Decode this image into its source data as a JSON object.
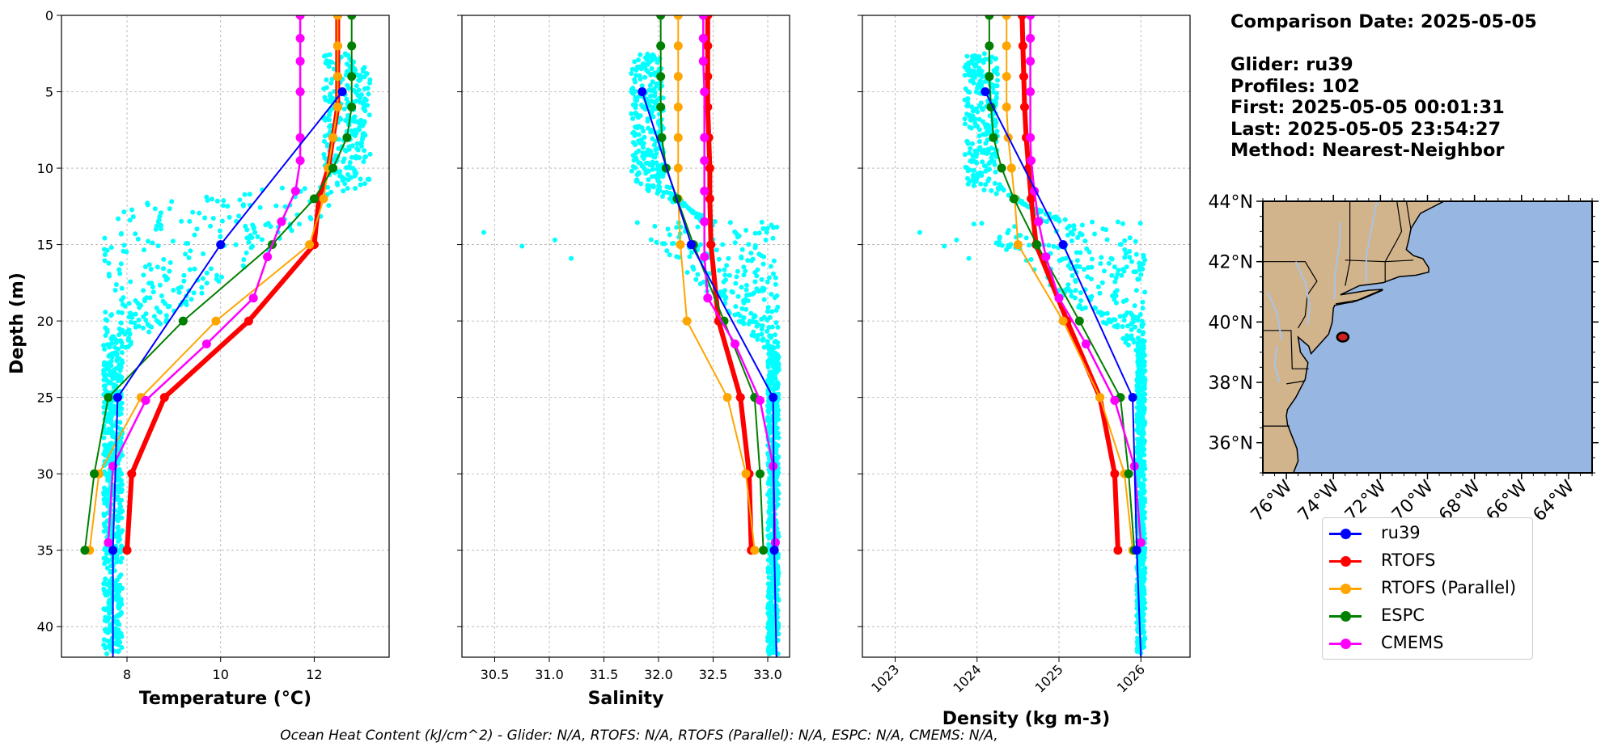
{
  "info": {
    "comparison_date": "Comparison Date: 2025-05-05",
    "glider": "Glider: ru39",
    "profiles": "Profiles: 102",
    "first": "First: 2025-05-05 00:01:31",
    "last": "Last: 2025-05-05 23:54:27",
    "method": "Method: Nearest-Neighbor"
  },
  "footer": "Ocean Heat Content (kJ/cm^2) - Glider: N/A,  RTOFS: N/A,  RTOFS (Parallel): N/A,  ESPC: N/A,  CMEMS: N/A,",
  "colors": {
    "scatter": "#00ffff",
    "ru39": "#0000ff",
    "RTOFS": "#ff0000",
    "RTOFS (Parallel)": "#ffa500",
    "ESPC": "#008000",
    "CMEMS": "#ff00ff",
    "land": "#d2b48c",
    "ocean": "#97b6e1",
    "grid": "#b0b0b0"
  },
  "legend": [
    {
      "name": "ru39",
      "color": "#0000ff"
    },
    {
      "name": "RTOFS",
      "color": "#ff0000"
    },
    {
      "name": "RTOFS (Parallel)",
      "color": "#ffa500"
    },
    {
      "name": "ESPC",
      "color": "#008000"
    },
    {
      "name": "CMEMS",
      "color": "#ff00ff"
    }
  ],
  "map": {
    "lat_ticks": [
      "44°N",
      "42°N",
      "40°N",
      "38°N",
      "36°N"
    ],
    "lat_values": [
      44,
      42,
      40,
      38,
      36
    ],
    "lon_ticks": [
      "76°W",
      "74°W",
      "72°W",
      "70°W",
      "68°W",
      "66°W",
      "64°W"
    ],
    "lon_values": [
      -76,
      -74,
      -72,
      -70,
      -68,
      -66,
      -64
    ],
    "extent": {
      "lon": [
        -77,
        -63
      ],
      "lat": [
        35,
        44
      ]
    },
    "glider_position": {
      "lon": -73.6,
      "lat": 39.5
    }
  },
  "chart_data": [
    {
      "type": "line",
      "xlabel": "Temperature (°C)",
      "ylabel": "Depth (m)",
      "xticks": [
        8,
        10,
        12
      ],
      "yticks": [
        0,
        5,
        10,
        15,
        20,
        25,
        30,
        35,
        40
      ],
      "xlim": [
        6.6,
        13.6
      ],
      "ylim": [
        42,
        0
      ],
      "grid": true,
      "scatter": {
        "name": "glider profiles",
        "depth_range": [
          2.5,
          41.8
        ],
        "surface_range": [
          12.2,
          13.2
        ],
        "deep_range": [
          7.5,
          7.9
        ]
      },
      "series": [
        {
          "name": "ru39",
          "depth": [
            5,
            15,
            25,
            35,
            42
          ],
          "values": [
            12.6,
            10.0,
            7.8,
            7.7,
            7.7
          ]
        },
        {
          "name": "RTOFS",
          "depth": [
            0,
            2,
            4,
            6,
            8,
            10,
            12,
            15,
            20,
            25,
            30,
            35
          ],
          "values": [
            12.5,
            12.5,
            12.5,
            12.5,
            12.4,
            12.3,
            12.1,
            12.0,
            10.6,
            8.8,
            8.1,
            8.0
          ]
        },
        {
          "name": "RTOFS (Parallel)",
          "depth": [
            0,
            2,
            4,
            6,
            8,
            10,
            12,
            15,
            20,
            25,
            30,
            35
          ],
          "values": [
            12.5,
            12.5,
            12.5,
            12.5,
            12.4,
            12.3,
            12.2,
            11.9,
            9.9,
            8.3,
            7.4,
            7.2
          ]
        },
        {
          "name": "ESPC",
          "depth": [
            0,
            2,
            4,
            6,
            8,
            10,
            12,
            15,
            20,
            25,
            30,
            35
          ],
          "values": [
            12.8,
            12.8,
            12.8,
            12.8,
            12.7,
            12.4,
            12.0,
            11.1,
            9.2,
            7.6,
            7.3,
            7.1
          ]
        },
        {
          "name": "CMEMS",
          "depth": [
            0,
            1.5,
            3,
            5,
            8,
            9.5,
            11.5,
            13.5,
            15.8,
            18.5,
            21.5,
            25.2,
            29.5,
            34.5
          ],
          "values": [
            11.7,
            11.7,
            11.7,
            11.7,
            11.7,
            11.7,
            11.6,
            11.3,
            11.0,
            10.7,
            9.7,
            8.4,
            7.7,
            7.6
          ]
        }
      ]
    },
    {
      "type": "line",
      "xlabel": "Salinity",
      "xticks": [
        30.5,
        31.0,
        31.5,
        32.0,
        32.5,
        33.0
      ],
      "xtick_labels": [
        "30.5",
        "31.0",
        "31.5",
        "32.0",
        "32.5",
        "33.0"
      ],
      "xlim": [
        30.2,
        33.2
      ],
      "ylim": [
        42,
        0
      ],
      "grid": true,
      "scatter": {
        "name": "glider profiles",
        "depth_range": [
          2.5,
          41.8
        ],
        "surface_range": [
          31.75,
          32.05
        ],
        "deep_range": [
          33.0,
          33.1
        ],
        "outliers": [
          [
            30.4,
            14.2
          ],
          [
            30.75,
            15.1
          ],
          [
            31.05,
            14.7
          ],
          [
            31.2,
            15.9
          ]
        ]
      },
      "series": [
        {
          "name": "ru39",
          "depth": [
            5,
            15,
            25,
            35,
            42
          ],
          "values": [
            31.85,
            32.3,
            33.05,
            33.06,
            33.08
          ]
        },
        {
          "name": "RTOFS",
          "depth": [
            0,
            2,
            4,
            6,
            8,
            10,
            12,
            15,
            20,
            25,
            30,
            35
          ],
          "values": [
            32.45,
            32.45,
            32.45,
            32.45,
            32.46,
            32.47,
            32.47,
            32.48,
            32.55,
            32.75,
            32.83,
            32.85
          ]
        },
        {
          "name": "RTOFS (Parallel)",
          "depth": [
            0,
            2,
            4,
            6,
            8,
            10,
            12,
            15,
            20,
            25,
            30,
            35
          ],
          "values": [
            32.18,
            32.18,
            32.18,
            32.18,
            32.18,
            32.18,
            32.18,
            32.2,
            32.26,
            32.63,
            32.8,
            32.88
          ]
        },
        {
          "name": "ESPC",
          "depth": [
            0,
            2,
            4,
            6,
            8,
            10,
            12,
            15,
            20,
            25,
            30,
            35
          ],
          "values": [
            32.02,
            32.02,
            32.02,
            32.02,
            32.03,
            32.07,
            32.17,
            32.32,
            32.6,
            32.88,
            32.93,
            32.96
          ]
        },
        {
          "name": "CMEMS",
          "depth": [
            0,
            1.5,
            3,
            5,
            8,
            9.5,
            11.5,
            13.5,
            15.8,
            18.5,
            21.5,
            25.2,
            29.5,
            34.5
          ],
          "values": [
            32.41,
            32.41,
            32.41,
            32.42,
            32.42,
            32.42,
            32.42,
            32.42,
            32.42,
            32.45,
            32.7,
            32.93,
            33.05,
            33.07
          ]
        }
      ]
    },
    {
      "type": "line",
      "xlabel": "Density (kg m-3)",
      "xticks": [
        1023,
        1024,
        1025,
        1026
      ],
      "xtick_labels": [
        "1023",
        "1024",
        "1025",
        "1026"
      ],
      "xlim": [
        1022.6,
        1026.6
      ],
      "ylim": [
        42,
        0
      ],
      "grid": true,
      "scatter": {
        "name": "glider profiles",
        "depth_range": [
          2.5,
          41.8
        ],
        "surface_range": [
          1023.85,
          1024.25
        ],
        "deep_range": [
          1025.95,
          1026.05
        ],
        "outliers": [
          [
            1023.3,
            14.2
          ],
          [
            1023.6,
            15.1
          ],
          [
            1023.75,
            14.7
          ],
          [
            1023.9,
            15.9
          ]
        ]
      },
      "series": [
        {
          "name": "ru39",
          "depth": [
            5,
            15,
            25,
            35,
            42
          ],
          "values": [
            1024.1,
            1025.05,
            1025.9,
            1025.95,
            1026.0
          ]
        },
        {
          "name": "RTOFS",
          "depth": [
            0,
            2,
            4,
            6,
            8,
            10,
            12,
            15,
            20,
            25,
            30,
            35
          ],
          "values": [
            1024.55,
            1024.56,
            1024.57,
            1024.58,
            1024.6,
            1024.63,
            1024.66,
            1024.72,
            1025.1,
            1025.5,
            1025.68,
            1025.72
          ]
        },
        {
          "name": "RTOFS (Parallel)",
          "depth": [
            0,
            2,
            4,
            6,
            8,
            10,
            12,
            15,
            20,
            25,
            30,
            35
          ],
          "values": [
            1024.36,
            1024.36,
            1024.36,
            1024.36,
            1024.38,
            1024.42,
            1024.46,
            1024.5,
            1025.05,
            1025.5,
            1025.8,
            1025.9
          ]
        },
        {
          "name": "ESPC",
          "depth": [
            0,
            2,
            4,
            6,
            8,
            10,
            12,
            15,
            20,
            25,
            30,
            35
          ],
          "values": [
            1024.15,
            1024.15,
            1024.15,
            1024.17,
            1024.2,
            1024.3,
            1024.45,
            1024.73,
            1025.25,
            1025.75,
            1025.85,
            1025.92
          ]
        },
        {
          "name": "CMEMS",
          "depth": [
            0,
            1.5,
            3,
            5,
            8,
            9.5,
            11.5,
            13.5,
            15.8,
            18.5,
            21.5,
            25.2,
            29.5,
            34.5
          ],
          "values": [
            1024.65,
            1024.65,
            1024.65,
            1024.65,
            1024.65,
            1024.66,
            1024.7,
            1024.75,
            1024.84,
            1025.0,
            1025.33,
            1025.68,
            1025.92,
            1026.0
          ]
        }
      ]
    }
  ]
}
